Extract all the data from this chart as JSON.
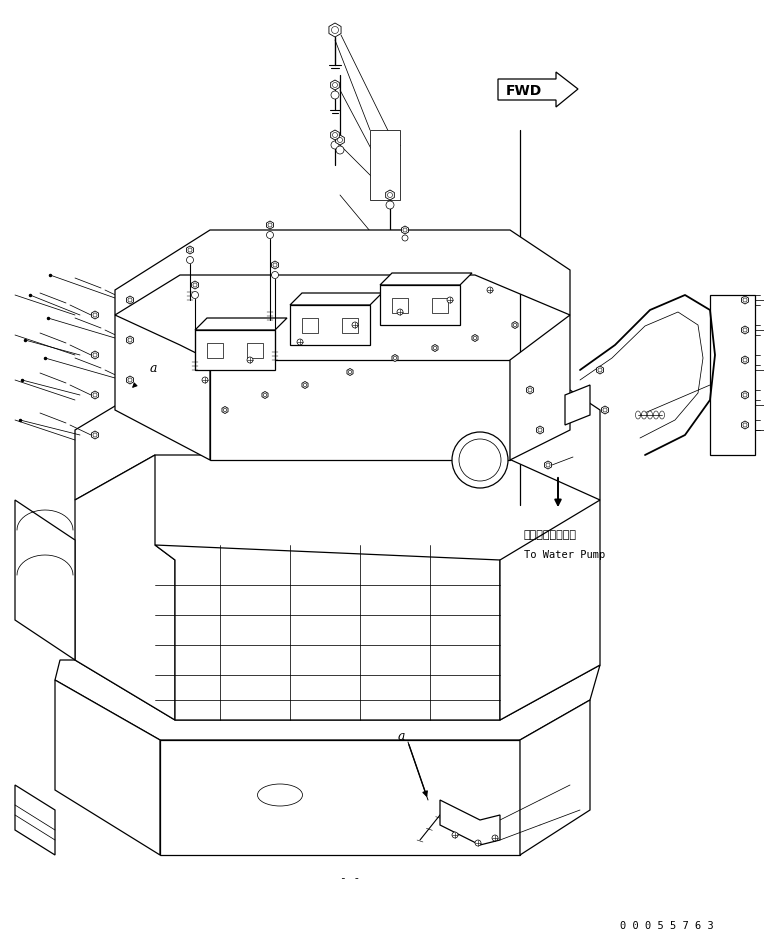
{
  "fig_width": 7.64,
  "fig_height": 9.39,
  "dpi": 100,
  "bg_color": "#ffffff",
  "line_color": "#000000",
  "part_number": "0 0 0 5 5 7 6 3",
  "label_a1": "a",
  "label_a2": "a",
  "text_japanese": "ウォータポンプへ",
  "text_english": "To Water Pump",
  "fwd_label": "FWD",
  "bottom_text": "- -",
  "lw_main": 0.9,
  "lw_thin": 0.55,
  "lw_thick": 1.3,
  "lw_med": 0.7
}
